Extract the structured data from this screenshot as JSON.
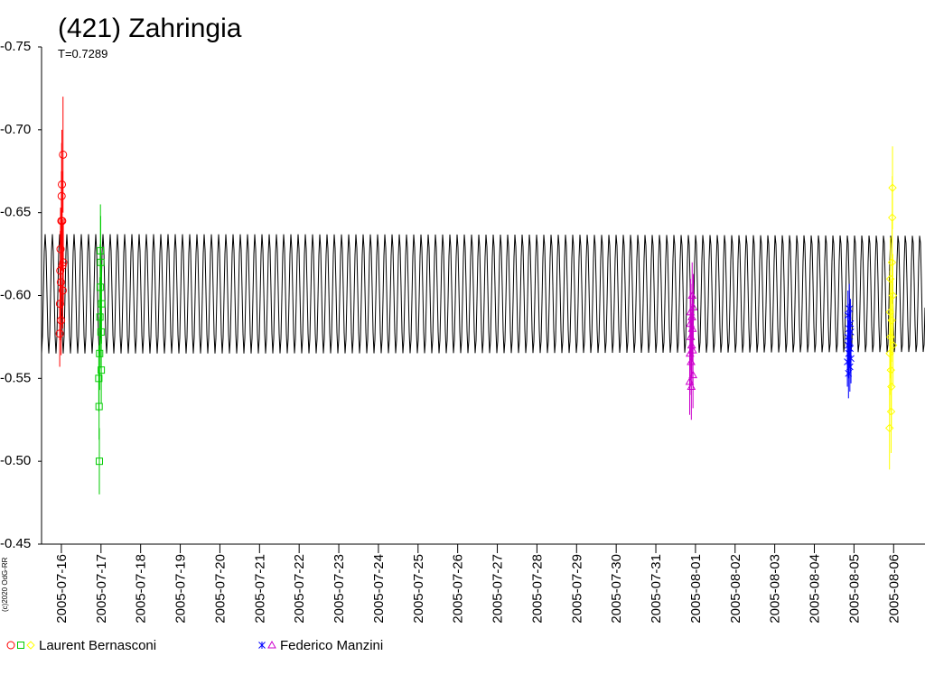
{
  "chart_data": {
    "type": "scatter",
    "title": "(421) Zahringia",
    "subtitle": "T=0.7289",
    "credit": "(c)2020 OdG-RR",
    "ylim": [
      -0.75,
      -0.45
    ],
    "yticks": [
      "-0.75",
      "-0.70",
      "-0.65",
      "-0.60",
      "-0.55",
      "-0.50",
      "-0.45"
    ],
    "ytick_values": [
      -0.75,
      -0.7,
      -0.65,
      -0.6,
      -0.55,
      -0.5,
      -0.45
    ],
    "xlim": [
      "2005-07-15 12:00",
      "2005-08-06 19:00"
    ],
    "xticks": [
      "2005-07-16",
      "2005-07-17",
      "2005-07-18",
      "2005-07-19",
      "2005-07-20",
      "2005-07-21",
      "2005-07-22",
      "2005-07-23",
      "2005-07-24",
      "2005-07-25",
      "2005-07-26",
      "2005-07-27",
      "2005-07-28",
      "2005-07-29",
      "2005-07-30",
      "2005-07-31",
      "2005-08-01",
      "2005-08-02",
      "2005-08-03",
      "2005-08-04",
      "2005-08-05",
      "2005-08-06"
    ],
    "grid": false,
    "legend_position": "bottom",
    "model_curve": {
      "color": "#000000",
      "period_days": 0.1824,
      "min": -0.637,
      "max": -0.565
    },
    "legend": [
      {
        "label": "Laurent Bernasconi",
        "markers": [
          "circle",
          "square",
          "diamond"
        ],
        "colors": [
          "#ff0000",
          "#00cc00",
          "#ffff00"
        ]
      },
      {
        "label": "Federico Manzini",
        "markers": [
          "star",
          "triangle"
        ],
        "colors": [
          "#0000ff",
          "#cc00cc"
        ]
      }
    ],
    "series": [
      {
        "marker": "circle",
        "color": "#ff0000",
        "points": [
          {
            "x": "2005-07-15 23:00",
            "y": -0.577,
            "err": 0.02
          },
          {
            "x": "2005-07-15 23:10",
            "y": -0.595,
            "err": 0.022
          },
          {
            "x": "2005-07-15 23:20",
            "y": -0.615,
            "err": 0.024
          },
          {
            "x": "2005-07-15 23:30",
            "y": -0.628,
            "err": 0.025
          },
          {
            "x": "2005-07-15 23:40",
            "y": -0.608,
            "err": 0.022
          },
          {
            "x": "2005-07-15 23:50",
            "y": -0.585,
            "err": 0.021
          },
          {
            "x": "2005-07-16 00:00",
            "y": -0.645,
            "err": 0.03
          },
          {
            "x": "2005-07-16 00:10",
            "y": -0.66,
            "err": 0.032
          },
          {
            "x": "2005-07-16 00:20",
            "y": -0.667,
            "err": 0.033
          },
          {
            "x": "2005-07-16 00:30",
            "y": -0.645,
            "err": 0.03
          },
          {
            "x": "2005-07-16 00:40",
            "y": -0.618,
            "err": 0.026
          },
          {
            "x": "2005-07-16 00:50",
            "y": -0.603,
            "err": 0.023
          },
          {
            "x": "2005-07-16 01:00",
            "y": -0.685,
            "err": 0.035
          },
          {
            "x": "2005-07-16 01:10",
            "y": -0.62,
            "err": 0.026
          }
        ]
      },
      {
        "marker": "square",
        "color": "#00cc00",
        "points": [
          {
            "x": "2005-07-16 22:40",
            "y": -0.55,
            "err": 0.02
          },
          {
            "x": "2005-07-16 22:50",
            "y": -0.533,
            "err": 0.02
          },
          {
            "x": "2005-07-16 23:00",
            "y": -0.5,
            "err": 0.02
          },
          {
            "x": "2005-07-16 23:10",
            "y": -0.565,
            "err": 0.022
          },
          {
            "x": "2005-07-16 23:20",
            "y": -0.587,
            "err": 0.024
          },
          {
            "x": "2005-07-16 23:30",
            "y": -0.605,
            "err": 0.026
          },
          {
            "x": "2005-07-16 23:40",
            "y": -0.627,
            "err": 0.028
          },
          {
            "x": "2005-07-16 23:50",
            "y": -0.62,
            "err": 0.028
          },
          {
            "x": "2005-07-17 00:00",
            "y": -0.578,
            "err": 0.022
          },
          {
            "x": "2005-07-17 00:10",
            "y": -0.555,
            "err": 0.02
          },
          {
            "x": "2005-07-17 00:20",
            "y": -0.595,
            "err": 0.024
          }
        ]
      },
      {
        "marker": "triangle",
        "color": "#cc00cc",
        "points": [
          {
            "x": "2005-07-31 20:30",
            "y": -0.548,
            "err": 0.02
          },
          {
            "x": "2005-07-31 20:40",
            "y": -0.565,
            "err": 0.02
          },
          {
            "x": "2005-07-31 20:50",
            "y": -0.583,
            "err": 0.02
          },
          {
            "x": "2005-07-31 21:00",
            "y": -0.59,
            "err": 0.02
          },
          {
            "x": "2005-07-31 21:10",
            "y": -0.575,
            "err": 0.02
          },
          {
            "x": "2005-07-31 21:20",
            "y": -0.56,
            "err": 0.02
          },
          {
            "x": "2005-07-31 21:30",
            "y": -0.545,
            "err": 0.02
          },
          {
            "x": "2005-07-31 21:40",
            "y": -0.57,
            "err": 0.02
          },
          {
            "x": "2005-07-31 21:50",
            "y": -0.587,
            "err": 0.02
          },
          {
            "x": "2005-07-31 22:00",
            "y": -0.6,
            "err": 0.02
          },
          {
            "x": "2005-07-31 22:10",
            "y": -0.58,
            "err": 0.02
          },
          {
            "x": "2005-07-31 22:20",
            "y": -0.567,
            "err": 0.02
          },
          {
            "x": "2005-07-31 22:30",
            "y": -0.552,
            "err": 0.02
          },
          {
            "x": "2005-07-31 22:40",
            "y": -0.593,
            "err": 0.02
          }
        ]
      },
      {
        "marker": "star",
        "color": "#0000ff",
        "points": [
          {
            "x": "2005-08-04 20:00",
            "y": -0.56,
            "err": 0.015
          },
          {
            "x": "2005-08-04 20:10",
            "y": -0.575,
            "err": 0.015
          },
          {
            "x": "2005-08-04 20:20",
            "y": -0.588,
            "err": 0.015
          },
          {
            "x": "2005-08-04 20:30",
            "y": -0.57,
            "err": 0.015
          },
          {
            "x": "2005-08-04 20:40",
            "y": -0.553,
            "err": 0.015
          },
          {
            "x": "2005-08-04 20:50",
            "y": -0.565,
            "err": 0.015
          },
          {
            "x": "2005-08-04 21:00",
            "y": -0.58,
            "err": 0.015
          },
          {
            "x": "2005-08-04 21:10",
            "y": -0.592,
            "err": 0.015
          },
          {
            "x": "2005-08-04 21:20",
            "y": -0.572,
            "err": 0.015
          },
          {
            "x": "2005-08-04 21:30",
            "y": -0.557,
            "err": 0.015
          },
          {
            "x": "2005-08-04 21:40",
            "y": -0.568,
            "err": 0.015
          },
          {
            "x": "2005-08-04 21:50",
            "y": -0.583,
            "err": 0.015
          },
          {
            "x": "2005-08-04 22:00",
            "y": -0.578,
            "err": 0.015
          },
          {
            "x": "2005-08-04 22:10",
            "y": -0.562,
            "err": 0.015
          }
        ]
      },
      {
        "marker": "diamond",
        "color": "#ffff00",
        "points": [
          {
            "x": "2005-08-05 21:30",
            "y": -0.52,
            "err": 0.025
          },
          {
            "x": "2005-08-05 21:40",
            "y": -0.565,
            "err": 0.025
          },
          {
            "x": "2005-08-05 21:50",
            "y": -0.59,
            "err": 0.025
          },
          {
            "x": "2005-08-05 22:00",
            "y": -0.61,
            "err": 0.025
          },
          {
            "x": "2005-08-05 22:10",
            "y": -0.575,
            "err": 0.025
          },
          {
            "x": "2005-08-05 22:20",
            "y": -0.555,
            "err": 0.025
          },
          {
            "x": "2005-08-05 22:30",
            "y": -0.53,
            "err": 0.025
          },
          {
            "x": "2005-08-05 22:40",
            "y": -0.545,
            "err": 0.025
          },
          {
            "x": "2005-08-05 22:50",
            "y": -0.585,
            "err": 0.025
          },
          {
            "x": "2005-08-05 23:00",
            "y": -0.62,
            "err": 0.025
          },
          {
            "x": "2005-08-05 23:10",
            "y": -0.647,
            "err": 0.025
          },
          {
            "x": "2005-08-05 23:20",
            "y": -0.665,
            "err": 0.025
          },
          {
            "x": "2005-08-05 23:30",
            "y": -0.6,
            "err": 0.025
          },
          {
            "x": "2005-08-05 23:40",
            "y": -0.57,
            "err": 0.025
          }
        ]
      }
    ]
  }
}
